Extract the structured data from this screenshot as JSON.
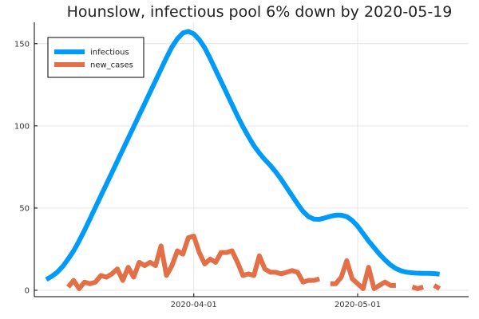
{
  "chart_data": {
    "type": "line",
    "title": "Hounslow, infectious pool 6% down by 2020-05-19",
    "xlabel": "",
    "ylabel": "",
    "x_start": "2020-03-05",
    "x_end": "2020-05-20",
    "ylim": [
      -3,
      163
    ],
    "xticks": [
      {
        "date": "2020-04-01",
        "label": "2020-04-01"
      },
      {
        "date": "2020-05-01",
        "label": "2020-05-01"
      }
    ],
    "yticks": [
      0,
      50,
      100,
      150
    ],
    "grid": true,
    "legend_position": "top-left",
    "series": [
      {
        "name": "infectious",
        "color": "#009af9",
        "start": "2020-03-05",
        "values": [
          6.5,
          8.5,
          11,
          14.5,
          19,
          24,
          30,
          36.5,
          43.5,
          50.5,
          57.5,
          64.5,
          71.5,
          78.5,
          85.5,
          92.5,
          99.5,
          106.5,
          113.5,
          120.5,
          127.5,
          134.5,
          141.5,
          148,
          153,
          156.5,
          157.5,
          156,
          152.5,
          147.5,
          141,
          134,
          127,
          120,
          113,
          106,
          99.5,
          93.5,
          88,
          83.5,
          79.5,
          76,
          72,
          67.5,
          62.5,
          57.5,
          52.5,
          48,
          44.8,
          43.3,
          43.2,
          44,
          45,
          45.7,
          45.7,
          44.8,
          42.5,
          39,
          34.5,
          30,
          26,
          22,
          18.5,
          15.5,
          13.2,
          11.8,
          11,
          10.6,
          10.4,
          10.3,
          10.3,
          10.2,
          9.8
        ]
      },
      {
        "name": "new_cases",
        "color": "#e26f46",
        "start": "2020-03-05",
        "values": [
          null,
          null,
          null,
          null,
          2,
          6,
          1,
          5,
          4,
          5,
          9,
          8,
          10,
          13,
          6,
          14,
          8,
          17,
          15,
          17,
          15,
          27,
          9,
          15,
          24,
          22,
          32,
          33,
          23,
          16,
          19,
          17,
          23,
          23,
          24,
          17,
          9,
          10,
          9,
          21,
          13,
          11,
          11,
          10,
          11,
          12,
          11,
          5,
          6,
          6,
          7,
          null,
          4,
          4,
          8,
          18,
          7,
          4,
          1,
          14,
          1,
          3,
          5,
          3,
          3,
          null,
          null,
          2,
          1,
          2,
          null,
          3,
          1
        ]
      }
    ]
  }
}
